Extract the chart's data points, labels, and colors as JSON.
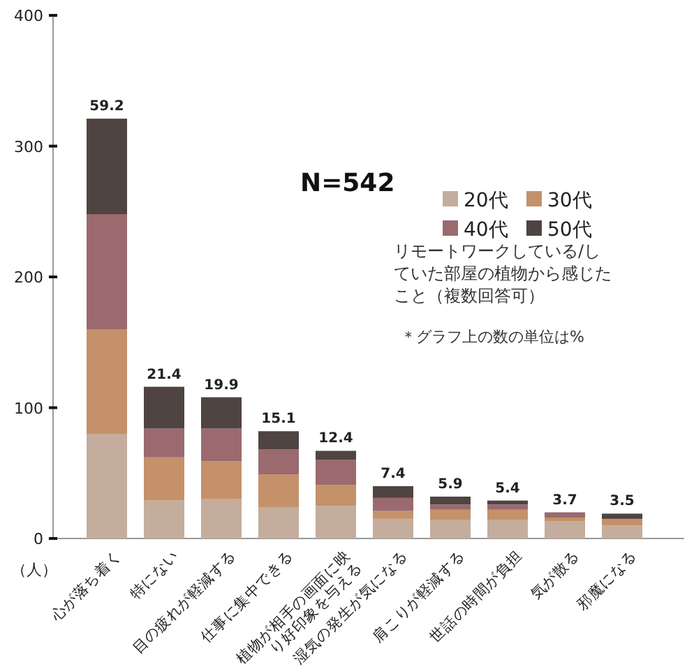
{
  "chart_data": {
    "type": "bar",
    "stacked": true,
    "categories": [
      "心が落ち着く",
      "特にない",
      "目の疲れが軽減する",
      "仕事に集中できる",
      "植物が相手の画面に映り好印象を与える",
      "湿気の発生が気になる",
      "肩こりが軽減する",
      "世話の時間が負担",
      "気が散る",
      "邪魔になる"
    ],
    "series": [
      {
        "name": "20代",
        "color": "#c4ad9c",
        "values": [
          80,
          29,
          30,
          24,
          25,
          15,
          14,
          14,
          13,
          10
        ]
      },
      {
        "name": "30代",
        "color": "#c4916a",
        "values": [
          80,
          33,
          29,
          25,
          16,
          6,
          8,
          8,
          3,
          5
        ]
      },
      {
        "name": "40代",
        "color": "#9a6a6e",
        "values": [
          88,
          22,
          25,
          19,
          19,
          10,
          4,
          4,
          4,
          0
        ]
      },
      {
        "name": "50代",
        "color": "#4f4442",
        "values": [
          73,
          32,
          24,
          14,
          7,
          9,
          6,
          3,
          0,
          4
        ]
      }
    ],
    "ylim": [
      0,
      400
    ],
    "yticks": [
      0,
      100,
      200,
      300,
      400
    ],
    "ylabel": "（人）",
    "legend": "top right",
    "annotations": [
      "N=542",
      "リモートワークしている/していた部屋の植物から感じたこと（複数回答可）",
      "＊グラフ上の数の単位は%",
      {
        "text": "59.2",
        "x": "心が落ち着く",
        "y": 321
      },
      {
        "text": "21.4",
        "x": "特にない",
        "y": 116
      },
      {
        "text": "19.9",
        "x": "目の疲れが軽減する",
        "y": 108
      },
      {
        "text": "15.1",
        "x": "仕事に集中できる",
        "y": 82
      },
      {
        "text": "12.4",
        "x": "植物が相手の画面に映り好印象を与える",
        "y": 67
      },
      {
        "text": "7.4",
        "x": "湿気の発生が気になる",
        "y": 40
      },
      {
        "text": "5.9",
        "x": "肩こりが軽減する",
        "y": 32
      },
      {
        "text": "5.4",
        "x": "世話の時間が負担",
        "y": 29
      },
      {
        "text": "3.7",
        "x": "気が散る",
        "y": 20
      },
      {
        "text": "3.5",
        "x": "邪魔になる",
        "y": 19
      }
    ]
  }
}
